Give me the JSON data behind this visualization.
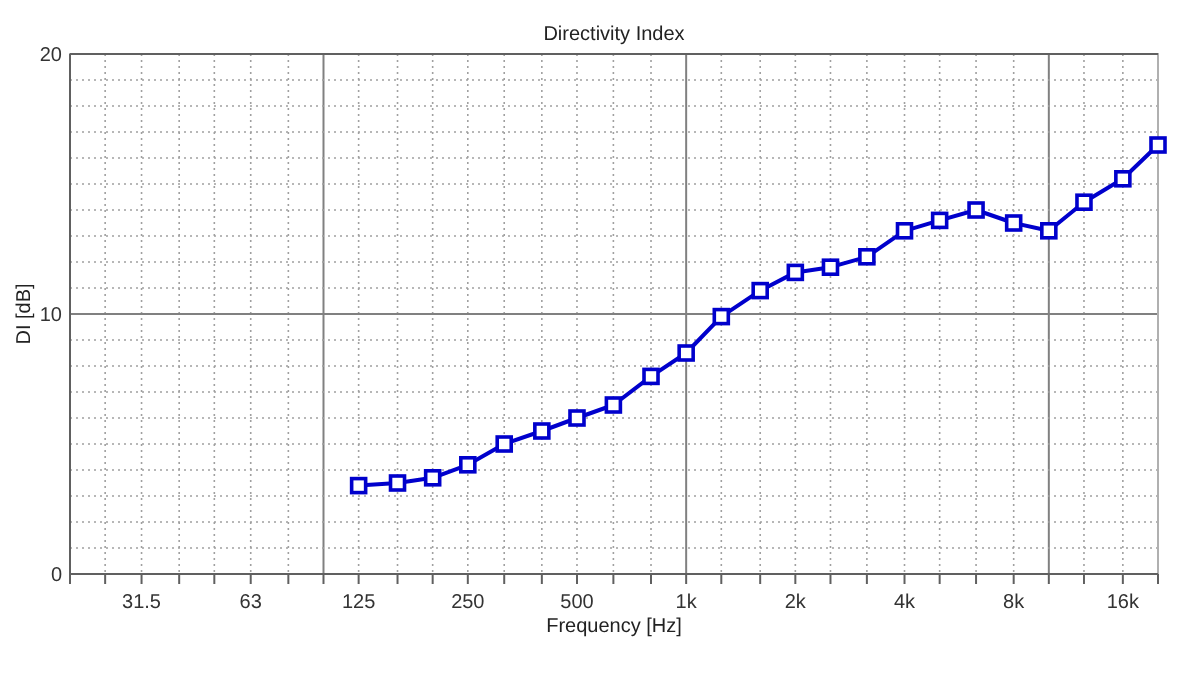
{
  "chart_data": {
    "type": "line",
    "title": "Directivity Index",
    "xlabel": "Frequency [Hz]",
    "ylabel": "DI [dB]",
    "log": "x",
    "x": [
      125,
      160,
      200,
      250,
      315,
      400,
      500,
      630,
      800,
      1000,
      1250,
      1600,
      2000,
      2500,
      3150,
      4000,
      5000,
      6300,
      8000,
      10000,
      12500,
      16000,
      20000
    ],
    "series": [
      {
        "color": "#0000cc",
        "values": [
          3.4,
          3.5,
          3.7,
          4.2,
          5.0,
          5.5,
          6.0,
          6.5,
          7.6,
          8.5,
          9.9,
          10.9,
          11.6,
          11.8,
          12.2,
          13.2,
          13.6,
          14.0,
          13.5,
          13.2,
          14.3,
          15.2,
          16.5
        ]
      }
    ],
    "xlim": [
      20,
      20000
    ],
    "xticks": [
      {
        "value": 20,
        "label": null
      },
      {
        "value": 25,
        "label": null
      },
      {
        "value": 31.5,
        "label": "31.5"
      },
      {
        "value": 40,
        "label": null
      },
      {
        "value": 50,
        "label": null
      },
      {
        "value": 63,
        "label": "63"
      },
      {
        "value": 80,
        "label": null
      },
      {
        "value": 100,
        "label": null
      },
      {
        "value": 125,
        "label": "125"
      },
      {
        "value": 160,
        "label": null
      },
      {
        "value": 200,
        "label": null
      },
      {
        "value": 250,
        "label": "250"
      },
      {
        "value": 315,
        "label": null
      },
      {
        "value": 400,
        "label": null
      },
      {
        "value": 500,
        "label": "500"
      },
      {
        "value": 630,
        "label": null
      },
      {
        "value": 800,
        "label": null
      },
      {
        "value": 1000,
        "label": "1k"
      },
      {
        "value": 1250,
        "label": null
      },
      {
        "value": 1600,
        "label": null
      },
      {
        "value": 2000,
        "label": "2k"
      },
      {
        "value": 2500,
        "label": null
      },
      {
        "value": 3150,
        "label": null
      },
      {
        "value": 4000,
        "label": "4k"
      },
      {
        "value": 5000,
        "label": null
      },
      {
        "value": 6300,
        "label": null
      },
      {
        "value": 8000,
        "label": "8k"
      },
      {
        "value": 10000,
        "label": null
      },
      {
        "value": 12500,
        "label": null
      },
      {
        "value": 16000,
        "label": "16k"
      },
      {
        "value": 20000,
        "label": null
      }
    ],
    "ylim": [
      0,
      20
    ],
    "yticks": [
      0,
      {
        "value": 1,
        "label": null
      },
      {
        "value": 2,
        "label": null
      },
      {
        "value": 3,
        "label": null
      },
      {
        "value": 4,
        "label": null
      },
      {
        "value": 5,
        "label": null
      },
      {
        "value": 6,
        "label": null
      },
      {
        "value": 7,
        "label": null
      },
      {
        "value": 8,
        "label": null
      },
      {
        "value": 9,
        "label": null
      },
      10,
      {
        "value": 11,
        "label": null
      },
      {
        "value": 12,
        "label": null
      },
      {
        "value": 13,
        "label": null
      },
      {
        "value": 14,
        "label": null
      },
      {
        "value": 15,
        "label": null
      },
      {
        "value": 16,
        "label": null
      },
      {
        "value": 17,
        "label": null
      },
      {
        "value": 18,
        "label": null
      },
      {
        "value": 19,
        "label": null
      },
      20
    ],
    "grid": true,
    "marker": "square",
    "line_style": "solid"
  }
}
